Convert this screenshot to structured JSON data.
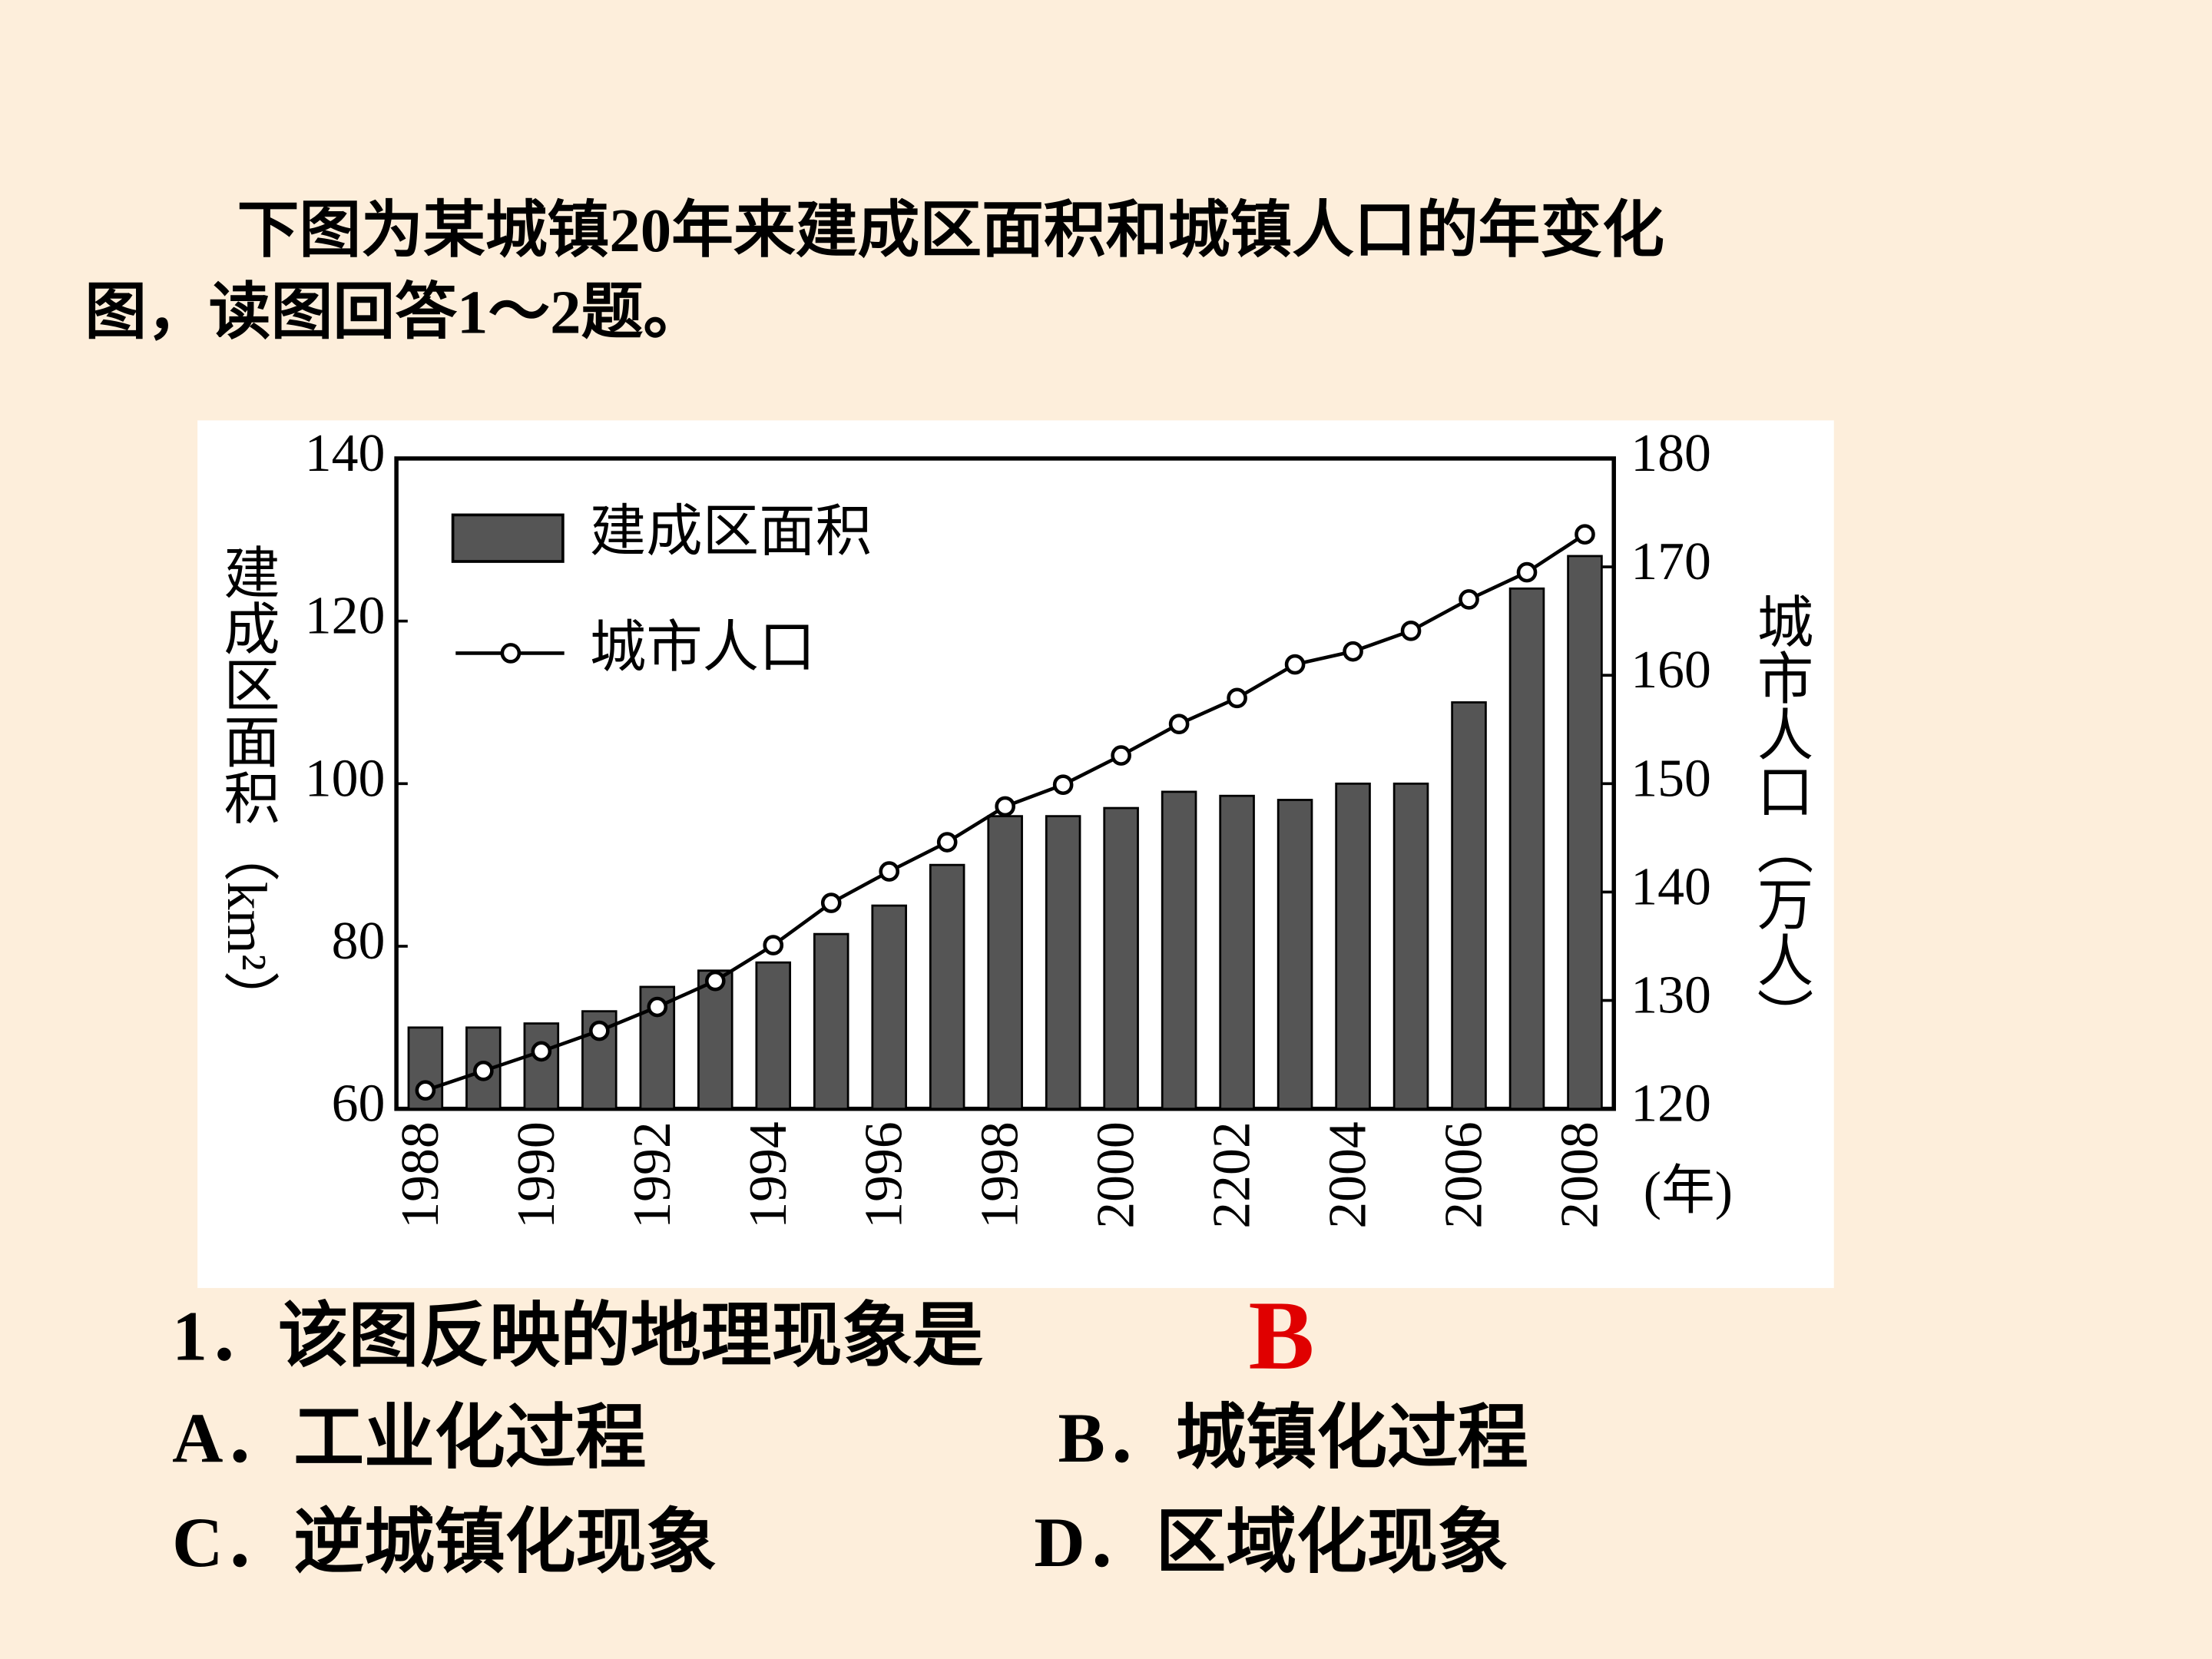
{
  "intro": [
    "下图为某城镇20年来建成区面积和城镇人口的年变化",
    "图，读图回答1～2题。"
  ],
  "chart_data": {
    "type": "bar-line",
    "categories": [
      "1988",
      null,
      "1990",
      null,
      "1992",
      null,
      "1994",
      null,
      "1996",
      null,
      "1998",
      null,
      "2000",
      null,
      "2202",
      null,
      "2004",
      null,
      "2006",
      null,
      "2008"
    ],
    "xlabel": "(年)",
    "ylabel": "建成区面积（km²）",
    "y2label": "城市人口（万人）",
    "series": [
      {
        "name": "建成区面积",
        "type": "bar",
        "color": "#555555",
        "values": [
          70,
          70,
          70.5,
          72,
          75,
          77,
          78,
          81.5,
          85,
          90,
          96,
          96,
          97,
          99,
          98.5,
          98,
          100,
          100,
          110,
          124,
          128
        ]
      },
      {
        "name": "城市人口",
        "type": "line",
        "axis": "y2",
        "color": "#000000",
        "values": [
          121.7,
          123.5,
          125.3,
          127.2,
          129.4,
          131.8,
          135.1,
          139,
          141.9,
          144.6,
          147.9,
          149.9,
          152.6,
          155.5,
          157.9,
          161,
          162.2,
          164.1,
          167,
          169.5,
          173
        ]
      }
    ],
    "ylim": [
      60,
      140
    ],
    "yticks": [
      60,
      80,
      100,
      120,
      140
    ],
    "y2lim": [
      120,
      180
    ],
    "y2ticks": [
      120,
      130,
      140,
      150,
      160,
      170,
      180
    ],
    "legend": "top-left"
  },
  "question": {
    "stem": "1．该图反映的地理现象是",
    "answer": "B",
    "options": [
      "A．工业化过程",
      "B．城镇化过程",
      "C．逆城镇化现象",
      "D．区域化现象"
    ]
  }
}
